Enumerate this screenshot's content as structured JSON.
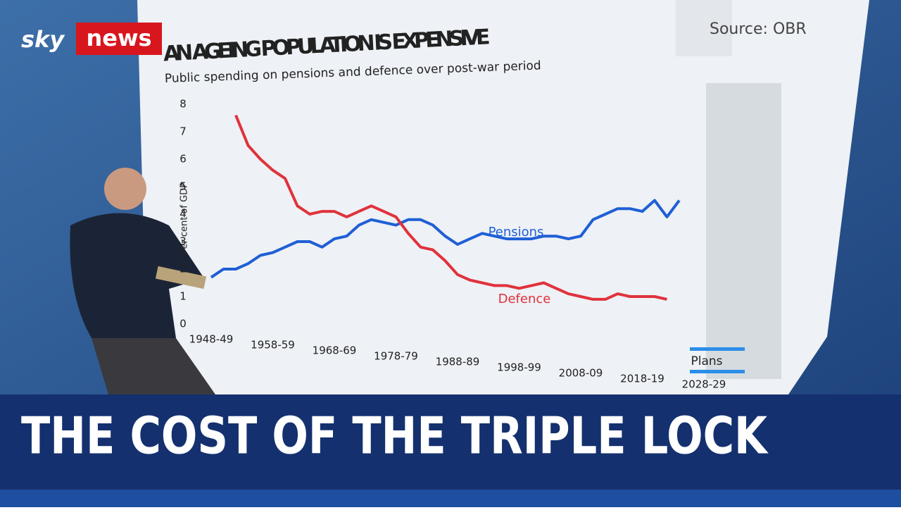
{
  "logo": {
    "brand": "sky",
    "name": "news"
  },
  "headline": "THE COST OF THE TRIPLE LOCK",
  "chart_data": {
    "type": "line",
    "title": "AN AGEING POPULATION IS EXPENSIVE",
    "subtitle": "Public spending on pensions and defence over post-war period",
    "source": "Source: OBR",
    "y_label": "Per cent of GDP",
    "annotation": "Plans",
    "x": [
      1948,
      1950,
      1952,
      1954,
      1956,
      1958,
      1960,
      1962,
      1964,
      1966,
      1968,
      1970,
      1972,
      1974,
      1976,
      1978,
      1980,
      1982,
      1984,
      1986,
      1988,
      1990,
      1992,
      1994,
      1996,
      1998,
      2000,
      2002,
      2004,
      2006,
      2008,
      2010,
      2012,
      2014,
      2016,
      2018,
      2020,
      2022,
      2024
    ],
    "series": [
      {
        "name": "Pensions",
        "color": "#1f5fd6",
        "values": [
          1.7,
          2.0,
          2.0,
          2.2,
          2.5,
          2.6,
          2.8,
          3.0,
          3.0,
          2.8,
          3.1,
          3.2,
          3.6,
          3.8,
          3.7,
          3.6,
          3.8,
          3.8,
          3.6,
          3.2,
          2.9,
          3.1,
          3.3,
          3.2,
          3.1,
          3.1,
          3.1,
          3.2,
          3.2,
          3.1,
          3.2,
          3.8,
          4.0,
          4.2,
          4.2,
          4.1,
          4.5,
          3.9,
          4.5
        ]
      },
      {
        "name": "Defence",
        "color": "#e0323c",
        "values": [
          null,
          null,
          7.6,
          6.5,
          6.0,
          5.6,
          5.3,
          4.3,
          4.0,
          4.1,
          4.1,
          3.9,
          4.1,
          4.3,
          4.1,
          3.9,
          3.3,
          2.8,
          2.7,
          2.3,
          1.8,
          1.6,
          1.5,
          1.4,
          1.4,
          1.3,
          1.4,
          1.5,
          1.3,
          1.1,
          1.0,
          0.9,
          0.9,
          1.1,
          1.0,
          1.0,
          1.0,
          0.9,
          null
        ]
      }
    ],
    "xlim": [
      1948,
      2028
    ],
    "xticks": [
      {
        "value": 1948,
        "label": "1948-49"
      },
      {
        "value": 1958,
        "label": "1958-59"
      },
      {
        "value": 1968,
        "label": "1968-69"
      },
      {
        "value": 1978,
        "label": "1978-79"
      },
      {
        "value": 1988,
        "label": "1988-89"
      },
      {
        "value": 1998,
        "label": "1998-99"
      },
      {
        "value": 2008,
        "label": "2008-09"
      },
      {
        "value": 2018,
        "label": "2018-19"
      },
      {
        "value": 2028,
        "label": "2028-29"
      }
    ],
    "ylim": [
      0,
      8
    ],
    "yticks": [
      0,
      1,
      2,
      3,
      4,
      5,
      6,
      7,
      8
    ]
  }
}
